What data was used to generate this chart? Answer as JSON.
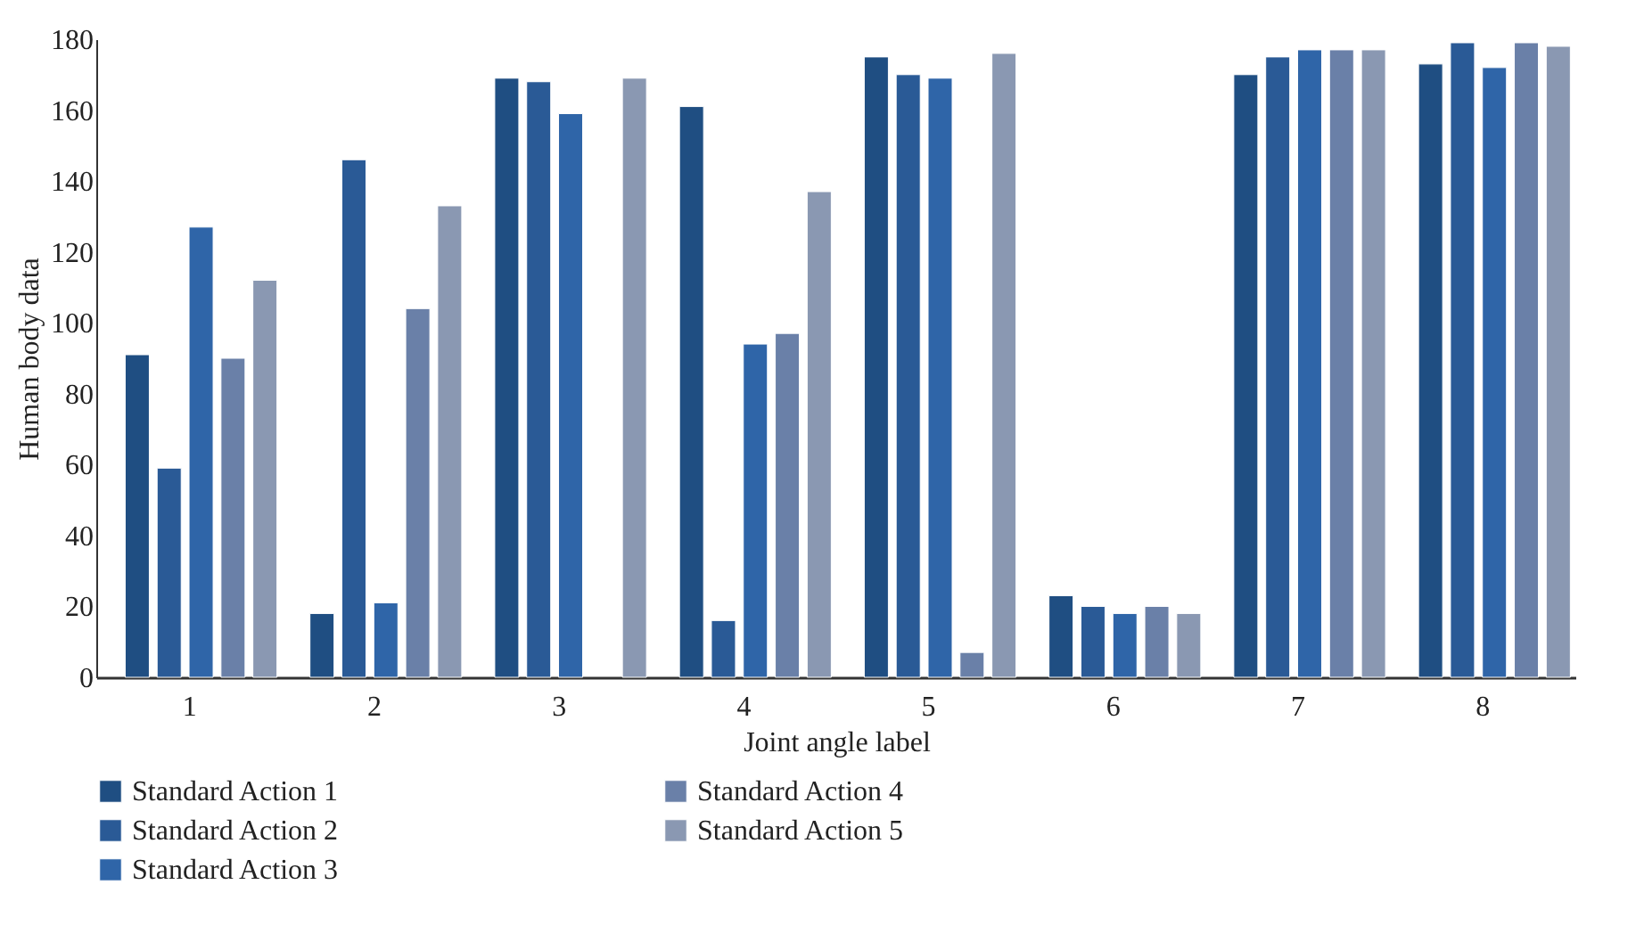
{
  "chart_data": {
    "type": "bar",
    "xlabel": "Joint angle label",
    "ylabel": "Human body data",
    "categories": [
      "1",
      "2",
      "3",
      "4",
      "5",
      "6",
      "7",
      "8"
    ],
    "series": [
      {
        "name": "Standard Action 1",
        "color": "#1f4e82",
        "values": [
          91,
          18,
          169,
          161,
          175,
          23,
          170,
          173
        ]
      },
      {
        "name": "Standard Action 2",
        "color": "#2a5a96",
        "values": [
          59,
          146,
          168,
          16,
          170,
          20,
          175,
          179
        ]
      },
      {
        "name": "Standard Action 3",
        "color": "#2f65a8",
        "values": [
          127,
          21,
          159,
          94,
          169,
          18,
          177,
          172
        ]
      },
      {
        "name": "Standard Action 4",
        "color": "#6a80a8",
        "values": [
          90,
          104,
          null,
          97,
          7,
          20,
          177,
          179
        ]
      },
      {
        "name": "Standard Action 5",
        "color": "#8a98b2",
        "values": [
          112,
          133,
          169,
          137,
          176,
          18,
          177,
          178
        ]
      }
    ],
    "ylim": [
      0,
      180
    ],
    "yticks": [
      0,
      20,
      40,
      60,
      80,
      100,
      120,
      140,
      160,
      180
    ],
    "grid": false,
    "legend": "bottom"
  }
}
